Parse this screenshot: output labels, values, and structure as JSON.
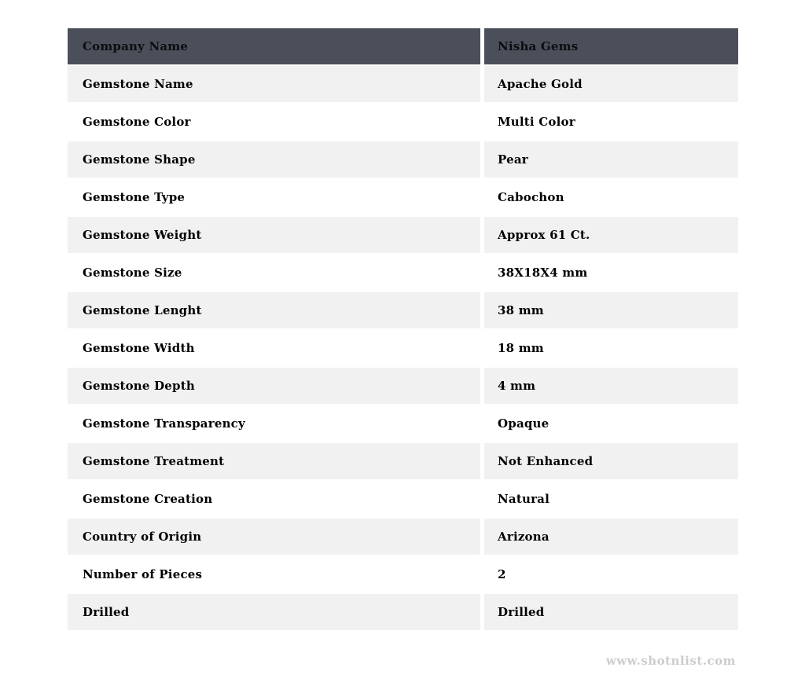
{
  "table": {
    "header": {
      "label": "Company Name",
      "value": "Nisha Gems"
    },
    "rows": [
      {
        "label": "Gemstone Name",
        "value": "Apache Gold"
      },
      {
        "label": "Gemstone Color",
        "value": "Multi Color"
      },
      {
        "label": "Gemstone Shape",
        "value": "Pear"
      },
      {
        "label": "Gemstone Type",
        "value": "Cabochon"
      },
      {
        "label": "Gemstone Weight",
        "value": "Approx 61 Ct."
      },
      {
        "label": "Gemstone Size",
        "value": "38X18X4 mm"
      },
      {
        "label": "Gemstone Lenght",
        "value": "38 mm"
      },
      {
        "label": "Gemstone Width",
        "value": "18 mm"
      },
      {
        "label": "Gemstone Depth",
        "value": "4 mm"
      },
      {
        "label": "Gemstone Transparency",
        "value": "Opaque"
      },
      {
        "label": "Gemstone Treatment",
        "value": "Not Enhanced"
      },
      {
        "label": "Gemstone Creation",
        "value": "Natural"
      },
      {
        "label": "Country of Origin",
        "value": "Arizona"
      },
      {
        "label": "Number of Pieces",
        "value": "2"
      },
      {
        "label": "Drilled",
        "value": "Drilled"
      }
    ],
    "colors": {
      "header_bg": "#4b4f5a",
      "row_alt_bg": "#f1f1f2",
      "row_bg": "#ffffff",
      "text": "#000000"
    }
  },
  "footer": {
    "watermark": "www.shotnlist.com",
    "color": "#cccccc"
  }
}
